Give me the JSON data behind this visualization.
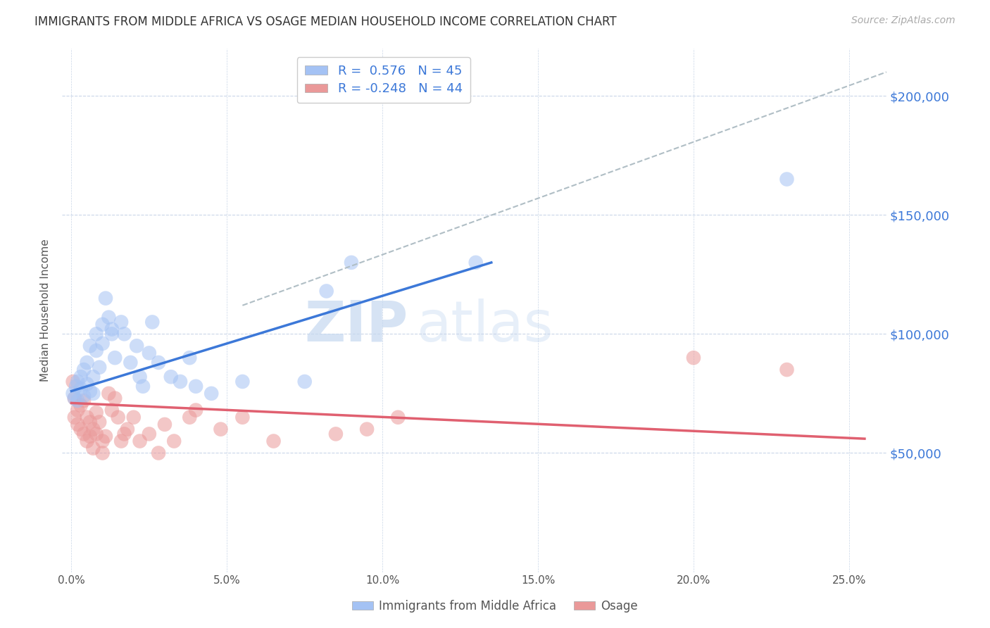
{
  "title": "IMMIGRANTS FROM MIDDLE AFRICA VS OSAGE MEDIAN HOUSEHOLD INCOME CORRELATION CHART",
  "source": "Source: ZipAtlas.com",
  "ylabel": "Median Household Income",
  "xlabel_ticks": [
    "0.0%",
    "5.0%",
    "10.0%",
    "15.0%",
    "20.0%",
    "25.0%"
  ],
  "xlabel_vals": [
    0.0,
    0.05,
    0.1,
    0.15,
    0.2,
    0.25
  ],
  "ylabel_ticks": [
    0,
    50000,
    100000,
    150000,
    200000
  ],
  "ylabel_labels": [
    "",
    "$50,000",
    "$100,000",
    "$150,000",
    "$200,000"
  ],
  "ylim": [
    10000,
    220000
  ],
  "xlim": [
    -0.003,
    0.262
  ],
  "blue_R": "0.576",
  "blue_N": "45",
  "pink_R": "-0.248",
  "pink_N": "44",
  "blue_color": "#a4c2f4",
  "pink_color": "#ea9999",
  "blue_line_color": "#3c78d8",
  "pink_line_color": "#e06070",
  "dashed_line_color": "#b0bec5",
  "grid_color": "#c9d6e8",
  "ylabel_color": "#3c78d8",
  "title_color": "#333333",
  "watermark_zip": "ZIP",
  "watermark_atlas": "atlas",
  "blue_scatter_x": [
    0.0005,
    0.001,
    0.0015,
    0.002,
    0.002,
    0.003,
    0.003,
    0.004,
    0.004,
    0.005,
    0.005,
    0.006,
    0.006,
    0.007,
    0.007,
    0.008,
    0.008,
    0.009,
    0.01,
    0.01,
    0.011,
    0.012,
    0.013,
    0.013,
    0.014,
    0.016,
    0.017,
    0.019,
    0.021,
    0.022,
    0.023,
    0.025,
    0.026,
    0.028,
    0.032,
    0.035,
    0.038,
    0.04,
    0.045,
    0.055,
    0.075,
    0.082,
    0.09,
    0.13,
    0.23
  ],
  "blue_scatter_y": [
    75000,
    73000,
    78000,
    72000,
    80000,
    77000,
    82000,
    74000,
    85000,
    79000,
    88000,
    76000,
    95000,
    82000,
    75000,
    100000,
    93000,
    86000,
    104000,
    96000,
    115000,
    107000,
    100000,
    102000,
    90000,
    105000,
    100000,
    88000,
    95000,
    82000,
    78000,
    92000,
    105000,
    88000,
    82000,
    80000,
    90000,
    78000,
    75000,
    80000,
    80000,
    118000,
    130000,
    130000,
    165000
  ],
  "pink_scatter_x": [
    0.0005,
    0.001,
    0.001,
    0.002,
    0.002,
    0.003,
    0.003,
    0.004,
    0.004,
    0.005,
    0.005,
    0.006,
    0.006,
    0.007,
    0.007,
    0.008,
    0.008,
    0.009,
    0.01,
    0.01,
    0.011,
    0.012,
    0.013,
    0.014,
    0.015,
    0.016,
    0.017,
    0.018,
    0.02,
    0.022,
    0.025,
    0.028,
    0.03,
    0.033,
    0.038,
    0.04,
    0.048,
    0.055,
    0.065,
    0.085,
    0.095,
    0.105,
    0.2,
    0.23
  ],
  "pink_scatter_y": [
    80000,
    73000,
    65000,
    68000,
    62000,
    70000,
    60000,
    72000,
    58000,
    65000,
    55000,
    63000,
    57000,
    60000,
    52000,
    58000,
    67000,
    63000,
    55000,
    50000,
    57000,
    75000,
    68000,
    73000,
    65000,
    55000,
    58000,
    60000,
    65000,
    55000,
    58000,
    50000,
    62000,
    55000,
    65000,
    68000,
    60000,
    65000,
    55000,
    58000,
    60000,
    65000,
    90000,
    85000
  ],
  "blue_line_x0": 0.0,
  "blue_line_x1": 0.135,
  "blue_line_y0": 76000,
  "blue_line_y1": 130000,
  "pink_line_x0": 0.0,
  "pink_line_x1": 0.255,
  "pink_line_y0": 71000,
  "pink_line_y1": 56000,
  "dashed_line_x0": 0.055,
  "dashed_line_x1": 0.262,
  "dashed_line_y0": 112000,
  "dashed_line_y1": 210000,
  "legend_blue_label": "Immigrants from Middle Africa",
  "legend_pink_label": "Osage",
  "background_color": "#ffffff",
  "legend_text_color": "#3c78d8",
  "legend_R_color": "#333333"
}
